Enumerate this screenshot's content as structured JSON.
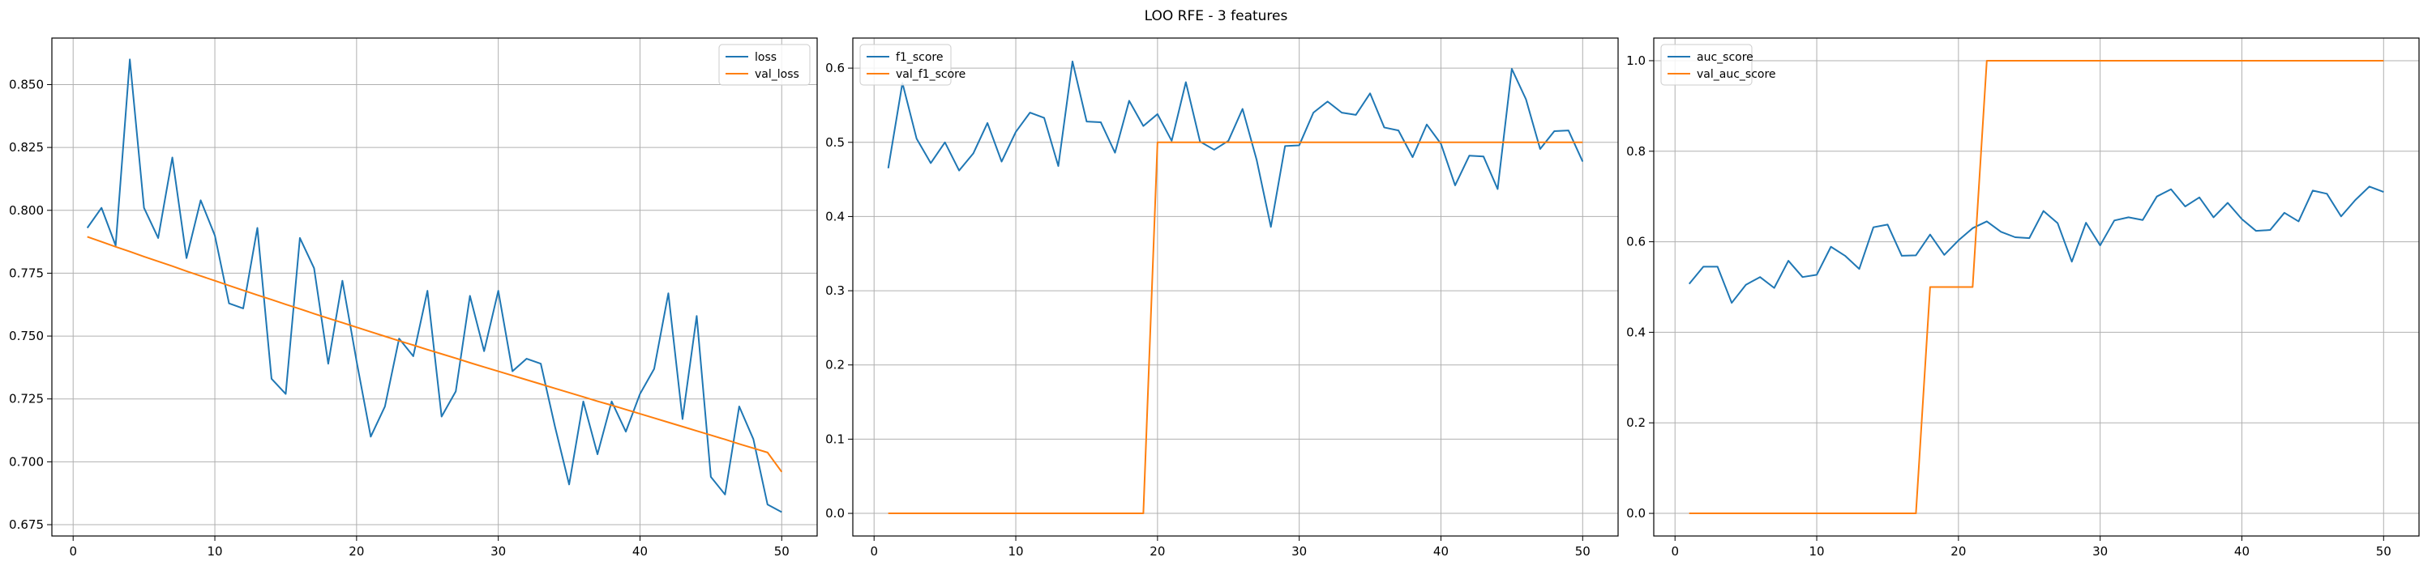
{
  "figure": {
    "title": "LOO RFE - 3 features"
  },
  "chart_data": [
    {
      "type": "line",
      "title": "",
      "xlabel": "",
      "ylabel": "",
      "xlim": [
        -1.5,
        52.5
      ],
      "ylim": [
        0.6705,
        0.8685
      ],
      "xticks": [
        0,
        10,
        20,
        30,
        40,
        50
      ],
      "yticks": [
        0.675,
        0.7,
        0.725,
        0.75,
        0.775,
        0.8,
        0.825,
        0.85
      ],
      "ytick_labels": [
        "0.675",
        "0.700",
        "0.725",
        "0.750",
        "0.775",
        "0.800",
        "0.825",
        "0.850"
      ],
      "grid": true,
      "legend_position": "top-right",
      "x": [
        1,
        2,
        3,
        4,
        5,
        6,
        7,
        8,
        9,
        10,
        11,
        12,
        13,
        14,
        15,
        16,
        17,
        18,
        19,
        20,
        21,
        22,
        23,
        24,
        25,
        26,
        27,
        28,
        29,
        30,
        31,
        32,
        33,
        34,
        35,
        36,
        37,
        38,
        39,
        40,
        41,
        42,
        43,
        44,
        45,
        46,
        47,
        48,
        49,
        50
      ],
      "series": [
        {
          "name": "loss",
          "color": "#1f77b4",
          "values": [
            0.793,
            0.801,
            0.786,
            0.86,
            0.801,
            0.789,
            0.821,
            0.781,
            0.804,
            0.79,
            0.763,
            0.761,
            0.793,
            0.733,
            0.727,
            0.789,
            0.777,
            0.739,
            0.772,
            0.74,
            0.71,
            0.722,
            0.749,
            0.742,
            0.768,
            0.718,
            0.728,
            0.766,
            0.744,
            0.768,
            0.736,
            0.741,
            0.739,
            0.714,
            0.691,
            0.724,
            0.703,
            0.724,
            0.712,
            0.727,
            0.737,
            0.767,
            0.717,
            0.758,
            0.694,
            0.687,
            0.722,
            0.709,
            0.683,
            0.68
          ]
        },
        {
          "name": "val_loss",
          "color": "#ff7f0e",
          "values": [
            0.7895,
            0.7875,
            0.7855,
            0.7836,
            0.7816,
            0.7797,
            0.7778,
            0.7758,
            0.7739,
            0.772,
            0.7701,
            0.7682,
            0.7663,
            0.7645,
            0.7626,
            0.7608,
            0.7589,
            0.7571,
            0.7553,
            0.7535,
            0.7517,
            0.7499,
            0.7481,
            0.7464,
            0.7446,
            0.7429,
            0.7412,
            0.7394,
            0.7377,
            0.736,
            0.7343,
            0.7326,
            0.7309,
            0.7292,
            0.7275,
            0.7258,
            0.7241,
            0.7225,
            0.7208,
            0.7191,
            0.7174,
            0.7157,
            0.714,
            0.7123,
            0.7106,
            0.7089,
            0.7071,
            0.7054,
            0.7037,
            0.696
          ]
        }
      ]
    },
    {
      "type": "line",
      "title": "",
      "xlabel": "",
      "ylabel": "",
      "xlim": [
        -1.5,
        52.5
      ],
      "ylim": [
        -0.0305,
        0.6405
      ],
      "xticks": [
        0,
        10,
        20,
        30,
        40,
        50
      ],
      "yticks": [
        0.0,
        0.1,
        0.2,
        0.3,
        0.4,
        0.5,
        0.6
      ],
      "ytick_labels": [
        "0.0",
        "0.1",
        "0.2",
        "0.3",
        "0.4",
        "0.5",
        "0.6"
      ],
      "grid": true,
      "legend_position": "top-left",
      "x": [
        1,
        2,
        3,
        4,
        5,
        6,
        7,
        8,
        9,
        10,
        11,
        12,
        13,
        14,
        15,
        16,
        17,
        18,
        19,
        20,
        21,
        22,
        23,
        24,
        25,
        26,
        27,
        28,
        29,
        30,
        31,
        32,
        33,
        34,
        35,
        36,
        37,
        38,
        39,
        40,
        41,
        42,
        43,
        44,
        45,
        46,
        47,
        48,
        49,
        50
      ],
      "series": [
        {
          "name": "f1_score",
          "color": "#1f77b4",
          "values": [
            0.465,
            0.58,
            0.505,
            0.472,
            0.5,
            0.462,
            0.485,
            0.526,
            0.474,
            0.514,
            0.54,
            0.533,
            0.468,
            0.609,
            0.528,
            0.527,
            0.486,
            0.556,
            0.522,
            0.538,
            0.502,
            0.581,
            0.501,
            0.49,
            0.502,
            0.545,
            0.476,
            0.386,
            0.495,
            0.496,
            0.54,
            0.555,
            0.54,
            0.537,
            0.566,
            0.52,
            0.516,
            0.48,
            0.524,
            0.498,
            0.442,
            0.482,
            0.481,
            0.437,
            0.599,
            0.558,
            0.491,
            0.515,
            0.516,
            0.474
          ]
        },
        {
          "name": "val_f1_score",
          "color": "#ff7f0e",
          "values": [
            0,
            0,
            0,
            0,
            0,
            0,
            0,
            0,
            0,
            0,
            0,
            0,
            0,
            0,
            0,
            0,
            0,
            0,
            0,
            0.5,
            0.5,
            0.5,
            0.5,
            0.5,
            0.5,
            0.5,
            0.5,
            0.5,
            0.5,
            0.5,
            0.5,
            0.5,
            0.5,
            0.5,
            0.5,
            0.5,
            0.5,
            0.5,
            0.5,
            0.5,
            0.5,
            0.5,
            0.5,
            0.5,
            0.5,
            0.5,
            0.5,
            0.5,
            0.5,
            0.5
          ]
        }
      ]
    },
    {
      "type": "line",
      "title": "",
      "xlabel": "",
      "ylabel": "",
      "xlim": [
        -1.5,
        52.5
      ],
      "ylim": [
        -0.05,
        1.05
      ],
      "xticks": [
        0,
        10,
        20,
        30,
        40,
        50
      ],
      "yticks": [
        0.0,
        0.2,
        0.4,
        0.6,
        0.8,
        1.0
      ],
      "ytick_labels": [
        "0.0",
        "0.2",
        "0.4",
        "0.6",
        "0.8",
        "1.0"
      ],
      "grid": true,
      "legend_position": "top-left",
      "x": [
        1,
        2,
        3,
        4,
        5,
        6,
        7,
        8,
        9,
        10,
        11,
        12,
        13,
        14,
        15,
        16,
        17,
        18,
        19,
        20,
        21,
        22,
        23,
        24,
        25,
        26,
        27,
        28,
        29,
        30,
        31,
        32,
        33,
        34,
        35,
        36,
        37,
        38,
        39,
        40,
        41,
        42,
        43,
        44,
        45,
        46,
        47,
        48,
        49,
        50
      ],
      "series": [
        {
          "name": "auc_score",
          "color": "#1f77b4",
          "values": [
            0.507,
            0.545,
            0.545,
            0.465,
            0.505,
            0.522,
            0.498,
            0.558,
            0.522,
            0.527,
            0.589,
            0.569,
            0.54,
            0.632,
            0.638,
            0.569,
            0.57,
            0.616,
            0.571,
            0.603,
            0.63,
            0.645,
            0.622,
            0.61,
            0.608,
            0.668,
            0.641,
            0.556,
            0.642,
            0.592,
            0.647,
            0.654,
            0.648,
            0.7,
            0.716,
            0.678,
            0.698,
            0.654,
            0.686,
            0.65,
            0.624,
            0.626,
            0.664,
            0.645,
            0.713,
            0.706,
            0.656,
            0.692,
            0.722,
            0.71
          ]
        },
        {
          "name": "val_auc_score",
          "color": "#ff7f0e",
          "values": [
            0,
            0,
            0,
            0,
            0,
            0,
            0,
            0,
            0,
            0,
            0,
            0,
            0,
            0,
            0,
            0,
            0,
            0.5,
            0.5,
            0.5,
            0.5,
            1,
            1,
            1,
            1,
            1,
            1,
            1,
            1,
            1,
            1,
            1,
            1,
            1,
            1,
            1,
            1,
            1,
            1,
            1,
            1,
            1,
            1,
            1,
            1,
            1,
            1,
            1,
            1,
            1
          ]
        }
      ]
    }
  ]
}
